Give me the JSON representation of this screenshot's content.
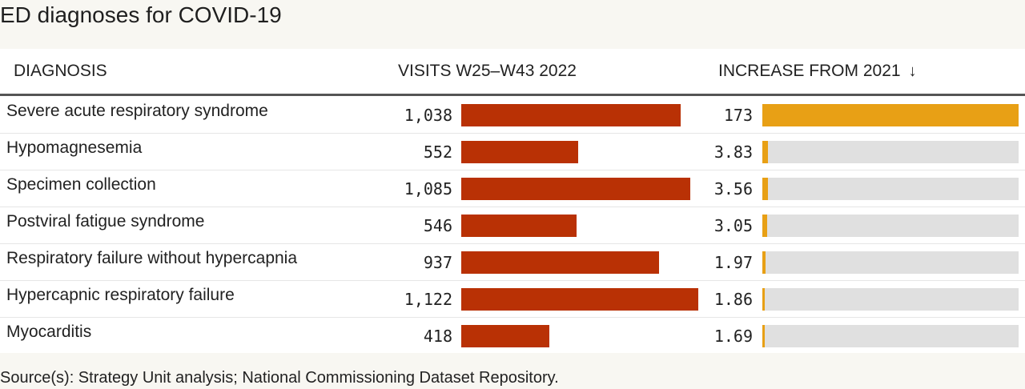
{
  "title": "ED diagnoses for COVID-19",
  "columns": {
    "diagnosis": "DIAGNOSIS",
    "visits": "VISITS W25–W43 2022",
    "increase": "INCREASE FROM 2021",
    "sort_icon": "↓"
  },
  "footer": "Source(s): Strategy Unit analysis; National Commissioning Dataset Repository.",
  "colors": {
    "visits_bar": "#b93105",
    "increase_bar": "#e8a015",
    "increase_track": "#e0e0e0"
  },
  "chart_data": {
    "type": "table",
    "title": "ED diagnoses for COVID-19",
    "columns": [
      "DIAGNOSIS",
      "VISITS W25–W43 2022",
      "INCREASE FROM 2021"
    ],
    "sorted_by": "INCREASE FROM 2021",
    "sort_direction": "descending",
    "visits_max": 1122,
    "increase_max": 173,
    "rows": [
      {
        "diagnosis": "Severe acute respiratory syndrome",
        "visits": 1038,
        "visits_label": "1,038",
        "increase": 173,
        "increase_label": "173"
      },
      {
        "diagnosis": "Hypomagnesemia",
        "visits": 552,
        "visits_label": "552",
        "increase": 3.83,
        "increase_label": "3.83"
      },
      {
        "diagnosis": "Specimen collection",
        "visits": 1085,
        "visits_label": "1,085",
        "increase": 3.56,
        "increase_label": "3.56"
      },
      {
        "diagnosis": "Postviral fatigue syndrome",
        "visits": 546,
        "visits_label": "546",
        "increase": 3.05,
        "increase_label": "3.05"
      },
      {
        "diagnosis": "Respiratory failure without hypercapnia",
        "visits": 937,
        "visits_label": "937",
        "increase": 1.97,
        "increase_label": "1.97"
      },
      {
        "diagnosis": "Hypercapnic respiratory failure",
        "visits": 1122,
        "visits_label": "1,122",
        "increase": 1.86,
        "increase_label": "1.86"
      },
      {
        "diagnosis": "Myocarditis",
        "visits": 418,
        "visits_label": "418",
        "increase": 1.69,
        "increase_label": "1.69"
      }
    ]
  }
}
